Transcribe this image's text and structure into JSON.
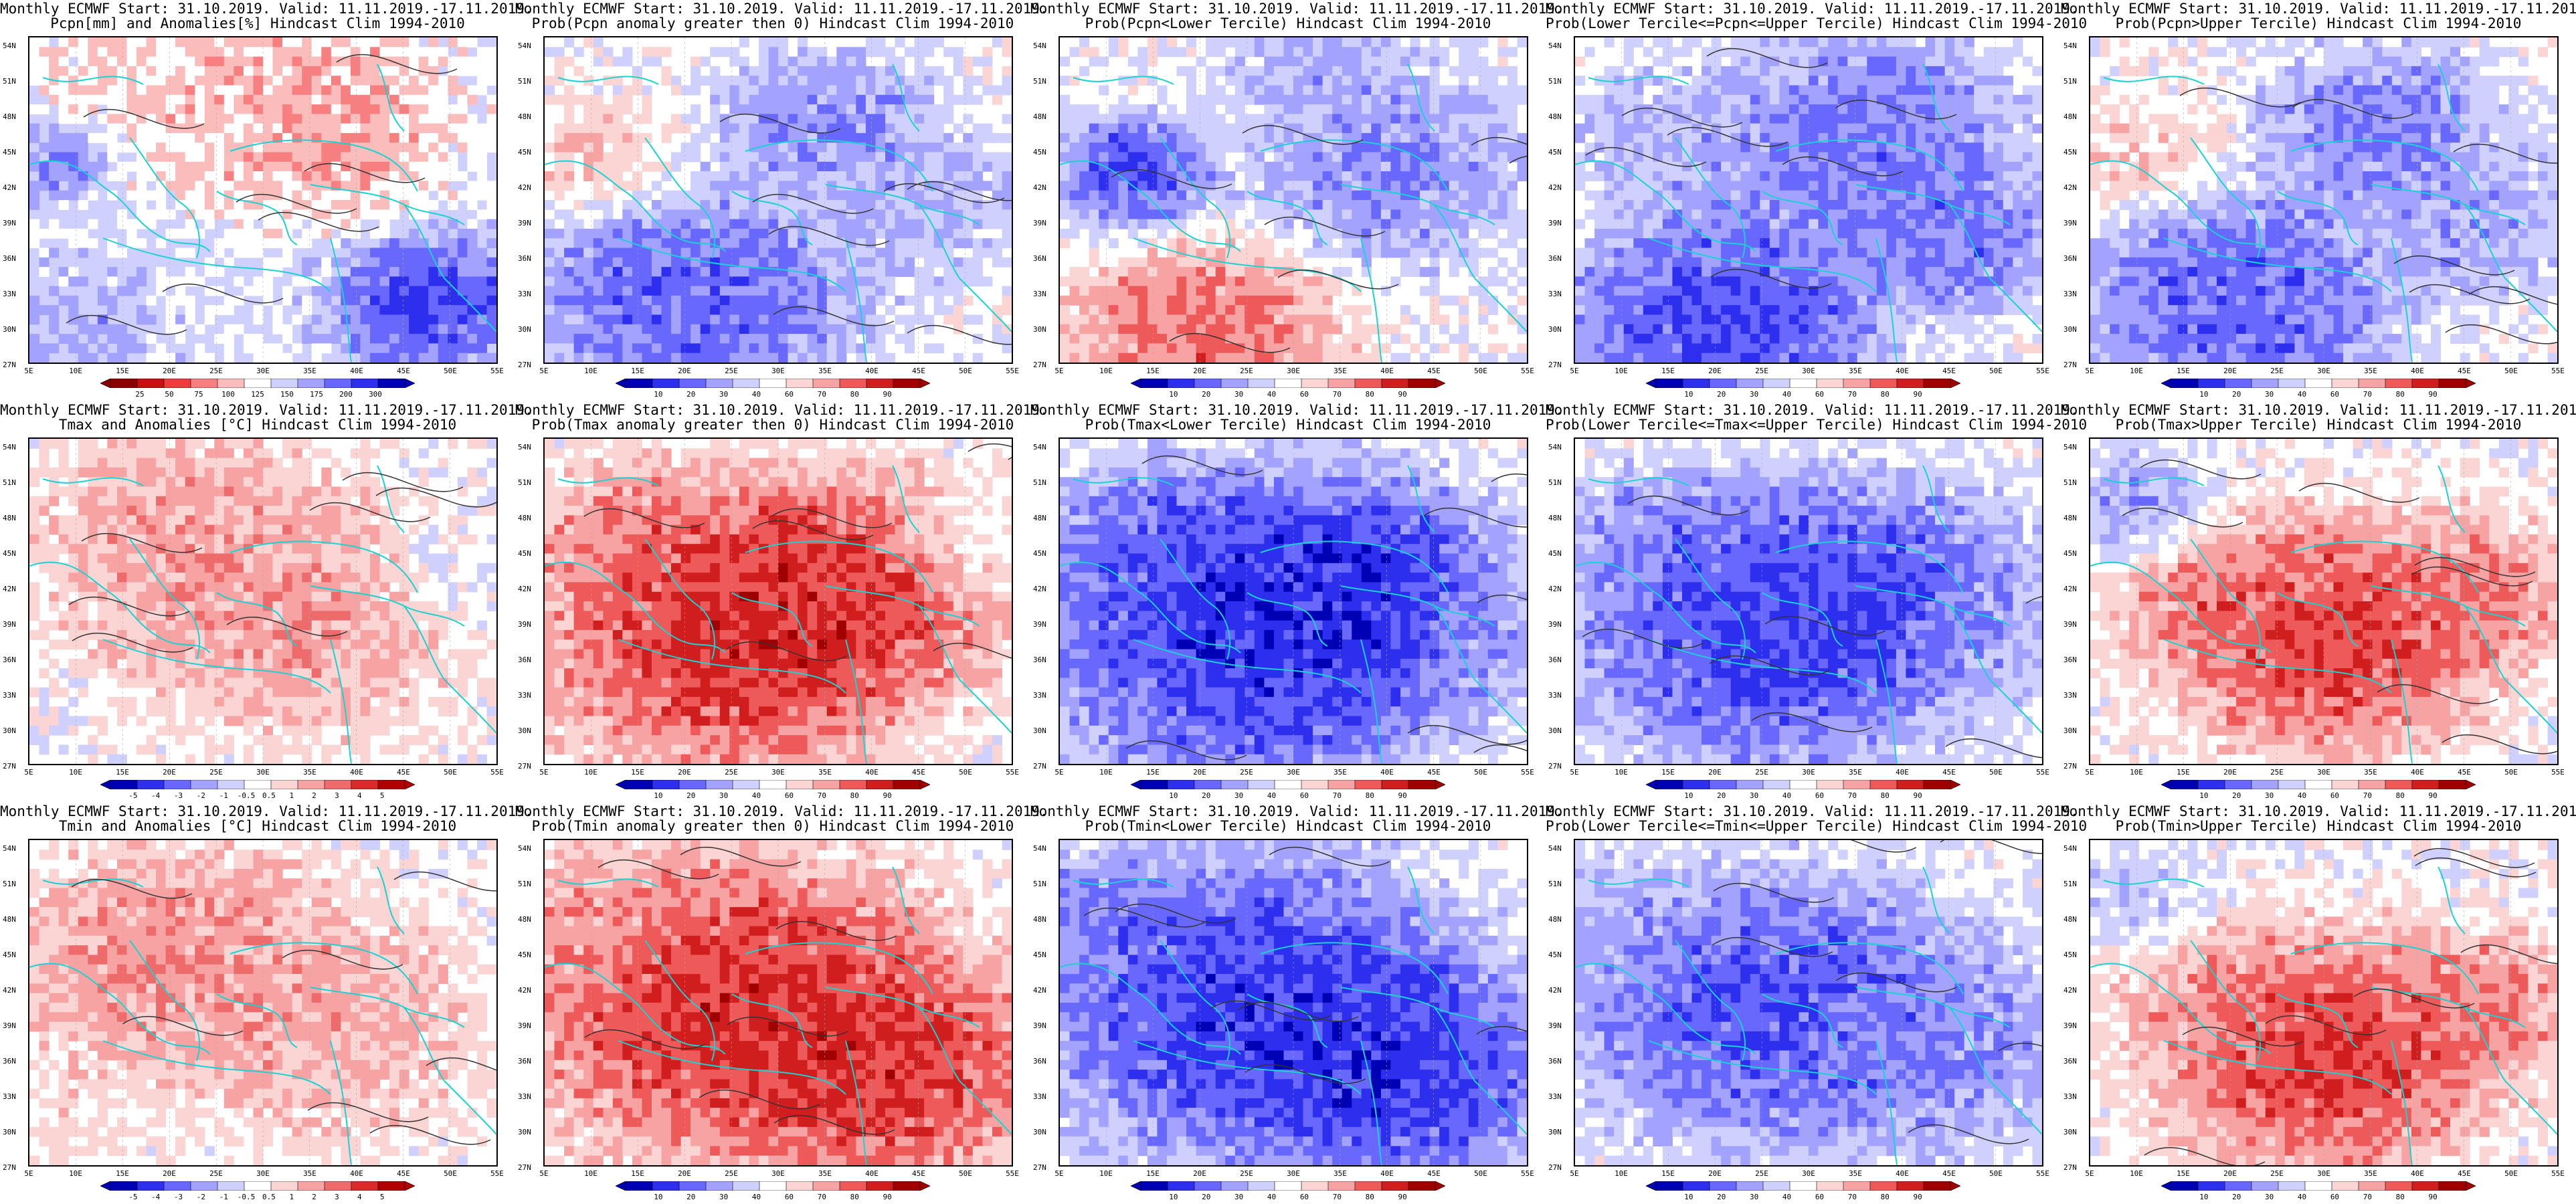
{
  "header_line": "Monthly ECMWF Start: 31.10.2019. Valid: 11.11.2019.-17.11.2019.",
  "lat_labels": [
    "54N",
    "51N",
    "48N",
    "45N",
    "42N",
    "39N",
    "36N",
    "33N",
    "30N",
    "27N"
  ],
  "lon_labels": [
    "5E",
    "10E",
    "15E",
    "20E",
    "25E",
    "30E",
    "35E",
    "40E",
    "45E",
    "50E",
    "55E"
  ],
  "palettes": {
    "pcpn": [
      "#8b0000",
      "#c81010",
      "#ee3b3b",
      "#f77f7f",
      "#fbbcbc",
      "#ffffff",
      "#d0d0ff",
      "#a3a3ff",
      "#6868ff",
      "#2e2eef",
      "#0000b4"
    ],
    "anom": [
      "#0000b4",
      "#2e2eef",
      "#6868ff",
      "#a3a3ff",
      "#d0d0ff",
      "#ffffff",
      "#fbd4d4",
      "#f7a3a3",
      "#ee6b6b",
      "#dc2a2a",
      "#b00000"
    ],
    "prob": [
      "#0000b4",
      "#2e2eef",
      "#6868ff",
      "#a3a3ff",
      "#d0d0ff",
      "#ffffff",
      "#fbd4d4",
      "#f7a3a3",
      "#ee5a5a",
      "#d01e1e",
      "#a00000"
    ]
  },
  "coast_color": "#19d2d2",
  "panels": [
    {
      "row": 0,
      "col": 0,
      "title2": "Pcpn[mm] and Anomalies[%] Hindcast Clim 1994-2010",
      "palette": "pcpn",
      "cbar_ticks": [
        "25",
        "50",
        "75",
        "100",
        "125",
        "150",
        "175",
        "200",
        "300"
      ],
      "blobs": [
        [
          0.05,
          0.35,
          0.12,
          0.8
        ],
        [
          0.85,
          0.8,
          0.18,
          0.95
        ],
        [
          0.35,
          0.1,
          0.3,
          0.4
        ],
        [
          0.6,
          0.25,
          0.25,
          0.3
        ],
        [
          0.1,
          0.85,
          0.15,
          0.7
        ]
      ]
    },
    {
      "row": 0,
      "col": 1,
      "title2": "Prob(Pcpn anomaly greater then 0) Hindcast Clim 1994-2010",
      "palette": "prob",
      "cbar_ticks": [
        "10",
        "20",
        "30",
        "40",
        "60",
        "70",
        "80",
        "90"
      ],
      "blobs": [
        [
          0.3,
          0.8,
          0.3,
          0.1
        ],
        [
          0.6,
          0.25,
          0.2,
          0.2
        ],
        [
          0.1,
          0.35,
          0.15,
          0.65
        ],
        [
          0.8,
          0.5,
          0.2,
          0.3
        ]
      ]
    },
    {
      "row": 0,
      "col": 2,
      "title2": "Prob(Pcpn<Lower Tercile) Hindcast Clim 1994-2010",
      "palette": "prob",
      "cbar_ticks": [
        "10",
        "20",
        "30",
        "40",
        "60",
        "70",
        "80",
        "90"
      ],
      "blobs": [
        [
          0.15,
          0.4,
          0.15,
          0.05
        ],
        [
          0.3,
          0.9,
          0.25,
          0.85
        ],
        [
          0.7,
          0.4,
          0.25,
          0.2
        ],
        [
          0.55,
          0.1,
          0.2,
          0.3
        ]
      ]
    },
    {
      "row": 0,
      "col": 3,
      "title2": "Prob(Lower Tercile<=Pcpn<=Upper Tercile) Hindcast Clim 1994-2010",
      "palette": "prob",
      "cbar_ticks": [
        "10",
        "20",
        "30",
        "40",
        "60",
        "70",
        "80",
        "90"
      ],
      "blobs": [
        [
          0.3,
          0.85,
          0.3,
          0.05
        ],
        [
          0.6,
          0.3,
          0.3,
          0.15
        ],
        [
          0.2,
          0.3,
          0.2,
          0.3
        ],
        [
          0.8,
          0.6,
          0.2,
          0.15
        ]
      ]
    },
    {
      "row": 0,
      "col": 4,
      "title2": "Prob(Pcpn>Upper Tercile) Hindcast Clim 1994-2010",
      "palette": "prob",
      "cbar_ticks": [
        "10",
        "20",
        "30",
        "40",
        "60",
        "70",
        "80",
        "90"
      ],
      "blobs": [
        [
          0.3,
          0.8,
          0.3,
          0.1
        ],
        [
          0.6,
          0.25,
          0.2,
          0.15
        ],
        [
          0.1,
          0.35,
          0.15,
          0.65
        ],
        [
          0.8,
          0.55,
          0.2,
          0.25
        ]
      ]
    },
    {
      "row": 1,
      "col": 0,
      "title2": "Tmax and Anomalies [°C] Hindcast Clim 1994-2010",
      "palette": "anom",
      "cbar_ticks": [
        "-5",
        "-4",
        "-3",
        "-2",
        "-1",
        "-0.5",
        "0.5",
        "1",
        "2",
        "3",
        "4",
        "5"
      ],
      "blobs": [
        [
          0.35,
          0.3,
          0.3,
          0.75
        ],
        [
          0.55,
          0.55,
          0.3,
          0.75
        ],
        [
          0.9,
          0.4,
          0.15,
          0.45
        ]
      ]
    },
    {
      "row": 1,
      "col": 1,
      "title2": "Prob(Tmax anomaly greater then 0) Hindcast Clim 1994-2010",
      "palette": "prob",
      "cbar_ticks": [
        "10",
        "20",
        "30",
        "40",
        "60",
        "70",
        "80",
        "90"
      ],
      "blobs": [
        [
          0.4,
          0.6,
          0.35,
          0.97
        ],
        [
          0.6,
          0.45,
          0.3,
          0.95
        ],
        [
          0.2,
          0.3,
          0.2,
          0.8
        ],
        [
          0.9,
          0.3,
          0.15,
          0.5
        ]
      ]
    },
    {
      "row": 1,
      "col": 2,
      "title2": "Prob(Tmax<Lower Tercile) Hindcast Clim 1994-2010",
      "palette": "prob",
      "cbar_ticks": [
        "10",
        "20",
        "30",
        "40",
        "60",
        "70",
        "80",
        "90"
      ],
      "blobs": [
        [
          0.4,
          0.6,
          0.4,
          0.0
        ],
        [
          0.6,
          0.45,
          0.3,
          0.02
        ],
        [
          0.2,
          0.3,
          0.2,
          0.15
        ],
        [
          0.9,
          0.6,
          0.15,
          0.3
        ]
      ]
    },
    {
      "row": 1,
      "col": 3,
      "title2": "Prob(Lower Tercile<=Tmax<=Upper Tercile) Hindcast Clim 1994-2010",
      "palette": "prob",
      "cbar_ticks": [
        "10",
        "20",
        "30",
        "40",
        "60",
        "70",
        "80",
        "90"
      ],
      "blobs": [
        [
          0.4,
          0.6,
          0.35,
          0.05
        ],
        [
          0.6,
          0.45,
          0.3,
          0.1
        ],
        [
          0.2,
          0.3,
          0.2,
          0.2
        ],
        [
          0.9,
          0.6,
          0.15,
          0.3
        ]
      ]
    },
    {
      "row": 1,
      "col": 4,
      "title2": "Prob(Tmax>Upper Tercile) Hindcast Clim 1994-2010",
      "palette": "prob",
      "cbar_ticks": [
        "10",
        "20",
        "30",
        "40",
        "60",
        "70",
        "80",
        "90"
      ],
      "blobs": [
        [
          0.5,
          0.6,
          0.3,
          0.95
        ],
        [
          0.3,
          0.45,
          0.2,
          0.8
        ],
        [
          0.8,
          0.45,
          0.2,
          0.8
        ],
        [
          0.1,
          0.2,
          0.15,
          0.25
        ]
      ]
    },
    {
      "row": 2,
      "col": 0,
      "title2": "Tmin and Anomalies [°C] Hindcast Clim 1994-2010",
      "palette": "anom",
      "cbar_ticks": [
        "-5",
        "-4",
        "-3",
        "-2",
        "-1",
        "-0.5",
        "0.5",
        "1",
        "2",
        "3",
        "4",
        "5"
      ],
      "blobs": [
        [
          0.3,
          0.35,
          0.3,
          0.8
        ],
        [
          0.6,
          0.55,
          0.3,
          0.72
        ],
        [
          0.1,
          0.8,
          0.15,
          0.6
        ]
      ]
    },
    {
      "row": 2,
      "col": 1,
      "title2": "Prob(Tmin anomaly greater then 0) Hindcast Clim 1994-2010",
      "palette": "prob",
      "cbar_ticks": [
        "10",
        "20",
        "30",
        "40",
        "60",
        "70",
        "80",
        "90"
      ],
      "blobs": [
        [
          0.4,
          0.5,
          0.4,
          0.97
        ],
        [
          0.7,
          0.7,
          0.3,
          0.95
        ],
        [
          0.1,
          0.2,
          0.15,
          0.7
        ]
      ]
    },
    {
      "row": 2,
      "col": 2,
      "title2": "Prob(Tmin<Lower Tercile) Hindcast Clim 1994-2010",
      "palette": "prob",
      "cbar_ticks": [
        "10",
        "20",
        "30",
        "40",
        "60",
        "70",
        "80",
        "90"
      ],
      "blobs": [
        [
          0.4,
          0.5,
          0.4,
          0.0
        ],
        [
          0.7,
          0.7,
          0.3,
          0.02
        ],
        [
          0.1,
          0.2,
          0.15,
          0.2
        ]
      ]
    },
    {
      "row": 2,
      "col": 3,
      "title2": "Prob(Lower Tercile<=Tmin<=Upper Tercile) Hindcast Clim 1994-2010",
      "palette": "prob",
      "cbar_ticks": [
        "10",
        "20",
        "30",
        "40",
        "60",
        "70",
        "80",
        "90"
      ],
      "blobs": [
        [
          0.4,
          0.5,
          0.35,
          0.05
        ],
        [
          0.7,
          0.6,
          0.3,
          0.2
        ],
        [
          0.1,
          0.2,
          0.15,
          0.3
        ]
      ]
    },
    {
      "row": 2,
      "col": 4,
      "title2": "Prob(Tmin>Upper Tercile) Hindcast Clim 1994-2010",
      "palette": "prob",
      "cbar_ticks": [
        "10",
        "20",
        "30",
        "40",
        "60",
        "70",
        "80",
        "90"
      ],
      "blobs": [
        [
          0.5,
          0.65,
          0.3,
          0.97
        ],
        [
          0.3,
          0.45,
          0.2,
          0.75
        ],
        [
          0.8,
          0.5,
          0.2,
          0.8
        ],
        [
          0.1,
          0.15,
          0.15,
          0.35
        ]
      ]
    }
  ]
}
